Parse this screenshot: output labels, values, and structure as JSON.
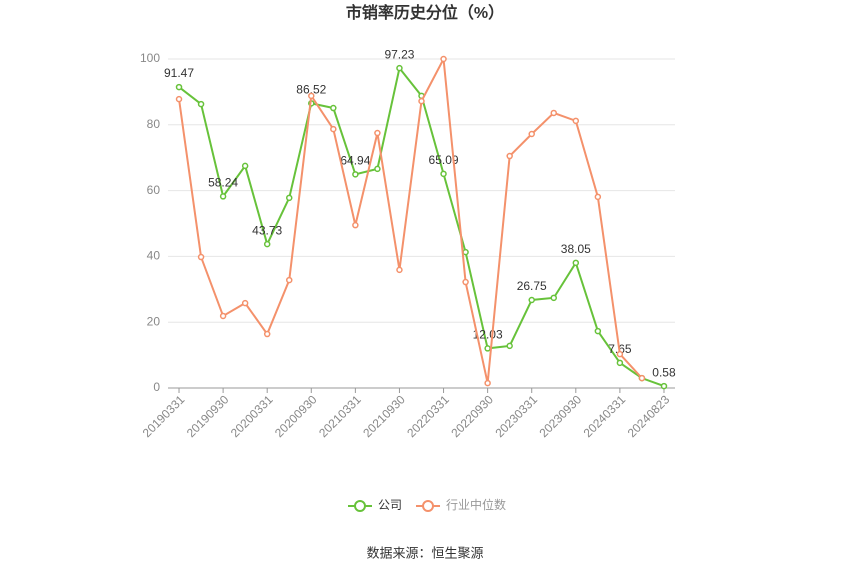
{
  "chart_data": {
    "type": "line",
    "title": "市销率历史分位（%）",
    "categories": [
      "20190331",
      null,
      "20190930",
      null,
      "20200331",
      null,
      "20200930",
      null,
      "20210331",
      null,
      "20210930",
      null,
      "20220331",
      null,
      "20220930",
      null,
      "20230331",
      null,
      "20230930",
      null,
      "20240331",
      null,
      "20240823"
    ],
    "series": [
      {
        "name": "公司",
        "color": "#67c23a",
        "values": [
          91.47,
          86.3,
          58.24,
          67.5,
          43.73,
          57.8,
          86.52,
          85.1,
          64.94,
          66.6,
          97.23,
          88.8,
          65.09,
          41.3,
          12.03,
          12.8,
          26.75,
          27.4,
          38.05,
          17.3,
          7.65,
          3.0,
          0.58
        ],
        "value_labels": [
          "91.47",
          null,
          "58.24",
          null,
          "43.73",
          null,
          "86.52",
          null,
          "64.94",
          null,
          "97.23",
          null,
          "65.09",
          null,
          "12.03",
          null,
          "26.75",
          null,
          "38.05",
          null,
          "7.65",
          null,
          "0.58"
        ]
      },
      {
        "name": "行业中位数",
        "color": "#f4916b",
        "values": [
          87.8,
          39.8,
          21.9,
          25.8,
          16.4,
          32.8,
          88.8,
          78.7,
          49.5,
          77.5,
          35.9,
          87.2,
          100,
          32.2,
          1.5,
          70.5,
          77.2,
          83.6,
          81.2,
          58.1,
          10.3,
          3.0,
          null
        ]
      }
    ],
    "ylim": [
      0,
      100
    ],
    "yticks": [
      0,
      20,
      40,
      60,
      80,
      100
    ],
    "grid": true,
    "source": "数据来源：恒生聚源"
  }
}
